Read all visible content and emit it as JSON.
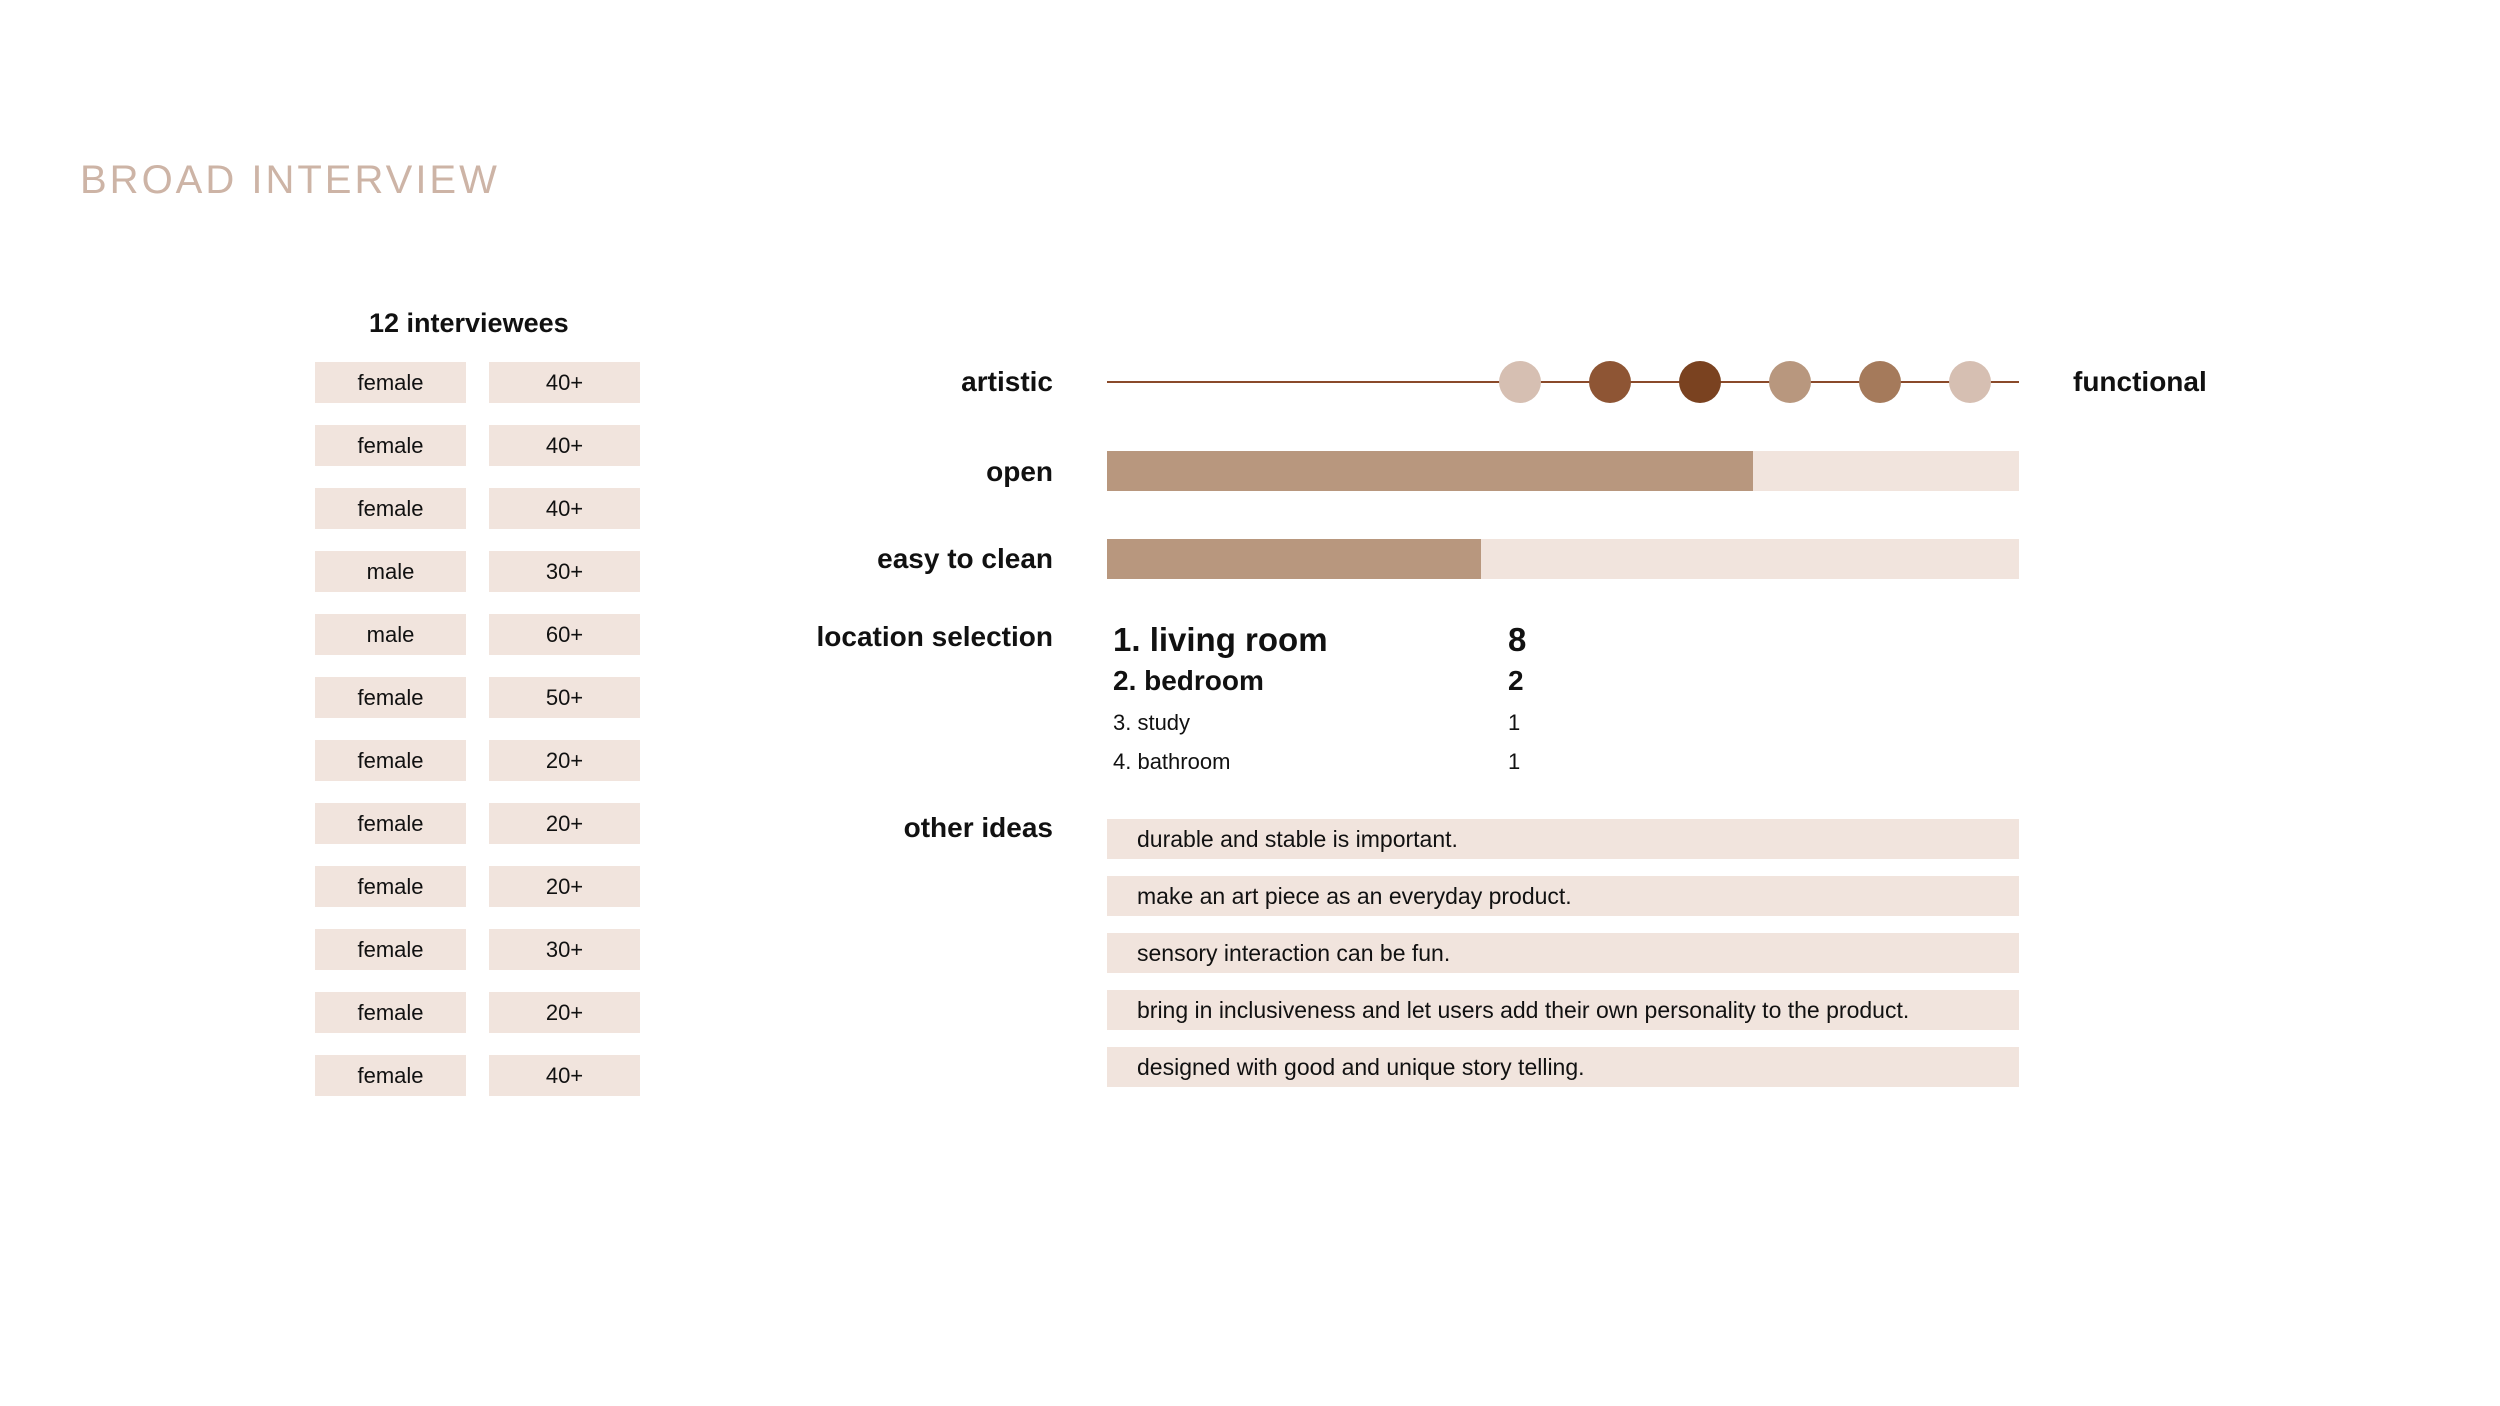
{
  "title": "BROAD INTERVIEW",
  "interviewees": {
    "heading": "12 interviewees",
    "rows": [
      {
        "gender": "female",
        "age": "40+"
      },
      {
        "gender": "female",
        "age": "40+"
      },
      {
        "gender": "female",
        "age": "40+"
      },
      {
        "gender": "male",
        "age": "30+"
      },
      {
        "gender": "male",
        "age": "60+"
      },
      {
        "gender": "female",
        "age": "50+"
      },
      {
        "gender": "female",
        "age": "20+"
      },
      {
        "gender": "female",
        "age": "20+"
      },
      {
        "gender": "female",
        "age": "20+"
      },
      {
        "gender": "female",
        "age": "30+"
      },
      {
        "gender": "female",
        "age": "20+"
      },
      {
        "gender": "female",
        "age": "40+"
      }
    ]
  },
  "spectrum": {
    "left_label": "artistic",
    "right_label": "functional",
    "line_color": "#8a4a2a",
    "dot_colors": [
      "#d6bfb2",
      "#8e5534",
      "#7a4220",
      "#b8977e",
      "#a57a5b",
      "#d6bfb2"
    ]
  },
  "bars": [
    {
      "label": "open",
      "fraction": 0.708,
      "fill_color": "#b8977e",
      "track_color": "#f1e4dd"
    },
    {
      "label": "easy to clean",
      "fraction": 0.41,
      "fill_color": "#b8977e",
      "track_color": "#f1e4dd"
    }
  ],
  "location": {
    "label": "location selection",
    "items": [
      {
        "name": "1. living room",
        "count": "8"
      },
      {
        "name": "2. bedroom",
        "count": "2"
      },
      {
        "name": "3. study",
        "count": "1"
      },
      {
        "name": "4. bathroom",
        "count": "1"
      }
    ]
  },
  "ideas": {
    "label": "other ideas",
    "items": [
      "durable and stable is important.",
      "make an art piece as an everyday product.",
      "sensory interaction can be fun.",
      "bring in inclusiveness and let users add their own personality to the product.",
      "designed with good and unique story telling."
    ]
  }
}
